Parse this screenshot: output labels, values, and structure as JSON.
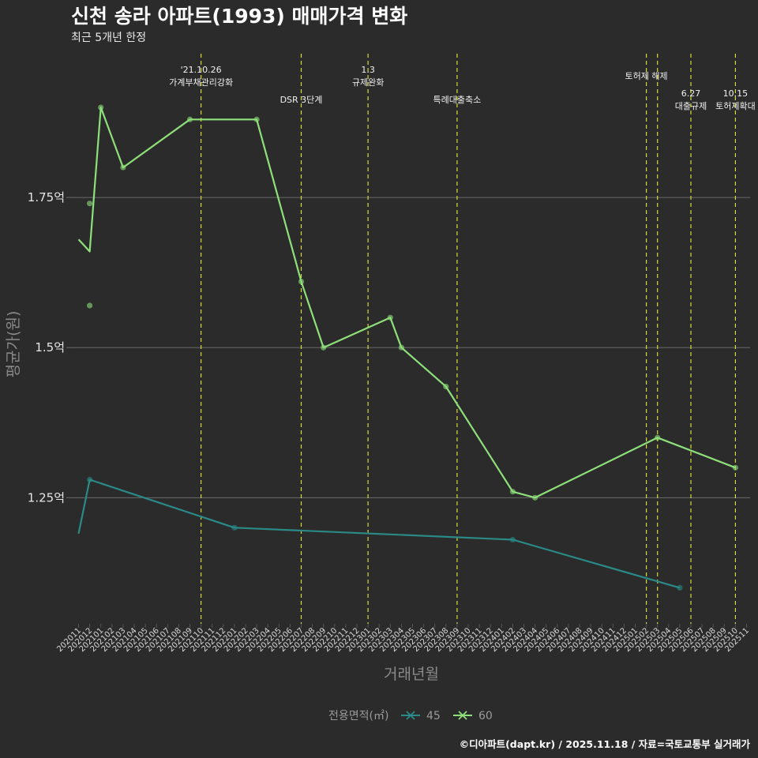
{
  "chart_data": {
    "type": "line",
    "title": "신천 송라 아파트(1993) 매매가격 변화",
    "subtitle": "최근 5개년 한정",
    "xlabel": "거래년월",
    "ylabel": "평균가(원)",
    "caption": "©디아파트(dapt.kr) / 2025.11.18 / 자료=국토교통부 실거래가",
    "legend_title": "전용면적(㎡)",
    "x_ticks": [
      "202011",
      "202012",
      "202101",
      "202102",
      "202103",
      "202104",
      "202105",
      "202106",
      "202107",
      "202108",
      "202109",
      "202110",
      "202111",
      "202112",
      "202201",
      "202202",
      "202203",
      "202204",
      "202205",
      "202206",
      "202207",
      "202208",
      "202209",
      "202210",
      "202211",
      "202212",
      "202301",
      "202302",
      "202303",
      "202304",
      "202305",
      "202306",
      "202307",
      "202308",
      "202309",
      "202310",
      "202311",
      "202312",
      "202401",
      "202402",
      "202403",
      "202404",
      "202405",
      "202406",
      "202407",
      "202408",
      "202409",
      "202410",
      "202411",
      "202412",
      "202501",
      "202502",
      "202503",
      "202504",
      "202505",
      "202506",
      "202507",
      "202508",
      "202509",
      "202510",
      "202511"
    ],
    "y_ticks": [
      {
        "value": 1.25,
        "label": "1.25억"
      },
      {
        "value": 1.5,
        "label": "1.5억"
      },
      {
        "value": 1.75,
        "label": "1.75억"
      }
    ],
    "ylim": [
      1.04,
      2.0
    ],
    "series": [
      {
        "name": "45",
        "color": "#2a8a87",
        "line": [
          [
            0,
            1.19
          ],
          [
            1,
            1.28
          ],
          [
            14,
            1.2
          ],
          [
            39,
            1.18
          ],
          [
            54,
            1.1
          ]
        ],
        "points": [
          [
            1,
            1.28
          ],
          [
            14,
            1.2
          ],
          [
            39,
            1.18
          ],
          [
            54,
            1.1
          ]
        ]
      },
      {
        "name": "60",
        "color": "#8ee07a",
        "line": [
          [
            0,
            1.68
          ],
          [
            1,
            1.66
          ],
          [
            2,
            1.9
          ],
          [
            4,
            1.8
          ],
          [
            10,
            1.88
          ],
          [
            16,
            1.88
          ],
          [
            20,
            1.61
          ],
          [
            22,
            1.5
          ],
          [
            28,
            1.55
          ],
          [
            29,
            1.5
          ],
          [
            33,
            1.435
          ],
          [
            39,
            1.26
          ],
          [
            41,
            1.25
          ],
          [
            52,
            1.35
          ],
          [
            59,
            1.3
          ]
        ],
        "points": [
          [
            1,
            1.74
          ],
          [
            1,
            1.57
          ],
          [
            2,
            1.9
          ],
          [
            4,
            1.8
          ],
          [
            10,
            1.88
          ],
          [
            16,
            1.88
          ],
          [
            20,
            1.61
          ],
          [
            22,
            1.5
          ],
          [
            28,
            1.55
          ],
          [
            29,
            1.5
          ],
          [
            33,
            1.435
          ],
          [
            39,
            1.26
          ],
          [
            41,
            1.25
          ],
          [
            52,
            1.35
          ],
          [
            59,
            1.3
          ]
        ]
      }
    ],
    "events": [
      {
        "x": 11,
        "lines": [
          "'21.10.26",
          "가계부채관리강화"
        ],
        "level": 0
      },
      {
        "x": 20,
        "lines": [
          "DSR 3단계"
        ],
        "level": 2
      },
      {
        "x": 26,
        "lines": [
          "1.3",
          "규제완화"
        ],
        "level": 0
      },
      {
        "x": 34,
        "lines": [
          "특례대출축소"
        ],
        "level": 2
      },
      {
        "x": 51,
        "lines": [
          "토허제 해제"
        ],
        "level": 1
      },
      {
        "x": 52,
        "lines": [],
        "level": 1
      },
      {
        "x": 55,
        "lines": [
          "6.27",
          "대출규제"
        ],
        "level": 3
      },
      {
        "x": 59,
        "lines": [
          "10.15",
          "토허제확대"
        ],
        "level": 3
      }
    ]
  },
  "colors": {
    "background": "#2b2b2b",
    "grid": "#6a6a6a",
    "event_line": "#d8d838"
  }
}
